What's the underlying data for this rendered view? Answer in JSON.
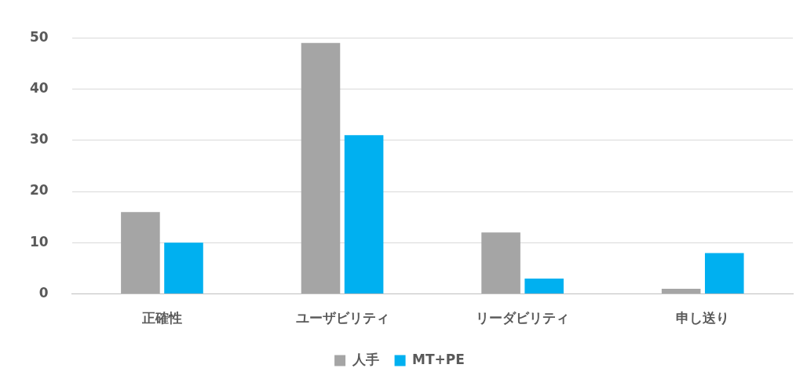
{
  "chart_data": {
    "type": "bar",
    "categories": [
      "正確性",
      "ユーザビリティ",
      "リーダビリティ",
      "申し送り"
    ],
    "series": [
      {
        "name": "人手",
        "color": "#a5a5a5",
        "values": [
          16,
          49,
          12,
          1
        ]
      },
      {
        "name": "MT+PE",
        "color": "#00b0f0",
        "values": [
          10,
          31,
          3,
          8
        ]
      }
    ],
    "ylim": [
      0,
      50
    ],
    "yticks": [
      0,
      10,
      20,
      30,
      40,
      50
    ],
    "grid": "y",
    "legend": "bottom"
  }
}
